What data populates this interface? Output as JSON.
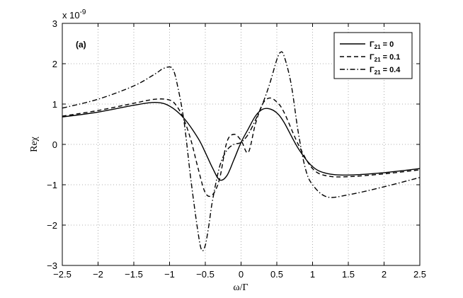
{
  "chart_data": {
    "type": "line",
    "panel_label": "(a)",
    "xlabel": "ω/Γ",
    "ylabel": "Reχ",
    "y_multiplier": "x 10",
    "y_exponent": "-9",
    "xlim": [
      -2.5,
      2.5
    ],
    "ylim": [
      -3,
      3
    ],
    "x_ticks": [
      -2.5,
      -2,
      -1.5,
      -1,
      -0.5,
      0,
      0.5,
      1,
      1.5,
      2,
      2.5
    ],
    "y_ticks": [
      -3,
      -2,
      -1,
      0,
      1,
      2,
      3
    ],
    "x_tick_labels": [
      "−2.5",
      "−2",
      "−1.5",
      "−1",
      "−0.5",
      "0",
      "0.5",
      "1",
      "1.5",
      "2",
      "2.5"
    ],
    "y_tick_labels": [
      "−3",
      "−2",
      "−1",
      "0",
      "1",
      "2",
      "3"
    ],
    "grid": "dotted",
    "legend_position": "top-right",
    "series": [
      {
        "name": "Γ21 = 0",
        "legend_symbol": "Γ",
        "legend_sub": "21",
        "legend_value": " = 0",
        "style": "solid",
        "x": [
          -2.5,
          -2.0,
          -1.5,
          -1.2,
          -1.0,
          -0.8,
          -0.6,
          -0.5,
          -0.4,
          -0.3,
          -0.2,
          -0.1,
          0.0,
          0.1,
          0.2,
          0.3,
          0.4,
          0.5,
          0.6,
          0.8,
          1.0,
          1.2,
          1.5,
          2.0,
          2.5
        ],
        "y": [
          0.68,
          0.8,
          0.97,
          1.04,
          0.95,
          0.65,
          0.15,
          -0.2,
          -0.58,
          -0.88,
          -0.78,
          -0.38,
          0.05,
          0.38,
          0.7,
          0.87,
          0.88,
          0.78,
          0.55,
          -0.1,
          -0.55,
          -0.72,
          -0.76,
          -0.7,
          -0.6
        ]
      },
      {
        "name": "Γ21 = 0.1",
        "legend_symbol": "Γ",
        "legend_sub": "21",
        "legend_value": " = 0.1",
        "style": "dashed",
        "x": [
          -2.5,
          -2.0,
          -1.5,
          -1.2,
          -1.0,
          -0.9,
          -0.8,
          -0.7,
          -0.6,
          -0.5,
          -0.4,
          -0.3,
          -0.2,
          -0.1,
          0.0,
          0.1,
          0.2,
          0.3,
          0.4,
          0.5,
          0.6,
          0.8,
          1.0,
          1.2,
          1.5,
          2.0,
          2.5
        ],
        "y": [
          0.7,
          0.84,
          1.02,
          1.12,
          1.1,
          0.95,
          0.62,
          0.1,
          -0.6,
          -1.2,
          -1.25,
          -0.85,
          0.05,
          0.25,
          0.1,
          -0.2,
          0.5,
          1.0,
          1.15,
          1.05,
          0.8,
          0.0,
          -0.6,
          -0.78,
          -0.8,
          -0.73,
          -0.63
        ]
      },
      {
        "name": "Γ21 = 0.4",
        "legend_symbol": "Γ",
        "legend_sub": "21",
        "legend_value": " = 0.4",
        "style": "dashdot",
        "x": [
          -2.5,
          -2.0,
          -1.5,
          -1.2,
          -1.1,
          -1.0,
          -0.95,
          -0.9,
          -0.8,
          -0.7,
          -0.6,
          -0.55,
          -0.5,
          -0.45,
          -0.4,
          -0.3,
          -0.2,
          -0.1,
          0.0,
          0.1,
          0.2,
          0.3,
          0.4,
          0.5,
          0.55,
          0.6,
          0.7,
          0.8,
          0.9,
          1.0,
          1.2,
          1.5,
          2.0,
          2.5
        ],
        "y": [
          0.9,
          1.12,
          1.45,
          1.75,
          1.87,
          1.92,
          1.85,
          1.55,
          0.6,
          -0.9,
          -2.2,
          -2.62,
          -2.5,
          -2.0,
          -1.4,
          -0.55,
          -0.15,
          0.0,
          0.05,
          0.25,
          0.6,
          1.0,
          1.5,
          2.1,
          2.28,
          2.2,
          1.5,
          0.3,
          -0.6,
          -1.0,
          -1.3,
          -1.25,
          -1.05,
          -0.82
        ]
      }
    ]
  }
}
